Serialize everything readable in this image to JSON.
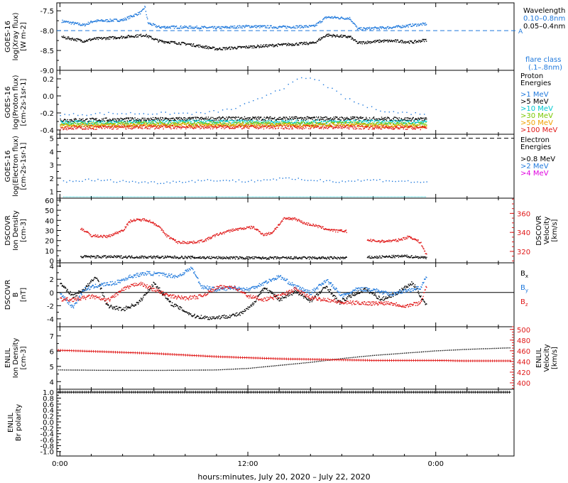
{
  "colors": {
    "black": "#000000",
    "blue": "#1e78dc",
    "red": "#e01818",
    "cyan": "#00c8d0",
    "green": "#78c800",
    "orange": "#f0a000",
    "magenta": "#e000e0"
  },
  "x_axis": {
    "xlabel": "hours:minutes, July 20, 2020 – July 22, 2020",
    "xlim_hours": [
      -0.2,
      29.0
    ],
    "ticks": [
      {
        "h": 0,
        "label": "0:00"
      },
      {
        "h": 12,
        "label": "12:00"
      },
      {
        "h": 24,
        "label": "0:00"
      }
    ]
  },
  "chart_data": [
    {
      "id": "xray",
      "type": "scatter",
      "ylabel": [
        "GOES-16",
        "log(Xray flux)",
        "[W m-2]"
      ],
      "ylim": [
        -9.0,
        -7.3
      ],
      "yticks": [
        -9.0,
        -8.5,
        -8.0,
        -7.5
      ],
      "ytick_labels": [
        "-9.0",
        "-8.5",
        "-8.0",
        "-7.5"
      ],
      "reference_line": {
        "y": -8.0,
        "label": "A"
      },
      "legend_title": "Wavelength",
      "series": [
        {
          "name": "0.10–0.8nm",
          "color": "blue",
          "x": [
            0.1,
            1.5,
            2.1,
            4.0,
            5.2,
            5.4,
            5.6,
            6.3,
            8.0,
            10.0,
            12.0,
            14.0,
            16.2,
            17.0,
            18.5,
            19.0,
            20.5,
            21.4,
            22.5,
            23.4
          ],
          "y": [
            -7.75,
            -7.85,
            -7.75,
            -7.72,
            -7.52,
            -7.38,
            -7.8,
            -7.9,
            -7.9,
            -7.92,
            -7.88,
            -7.9,
            -7.88,
            -7.65,
            -7.68,
            -7.95,
            -7.92,
            -7.9,
            -7.85,
            -7.82
          ]
        },
        {
          "name": "0.05–0.4nm",
          "color": "black",
          "x": [
            0.1,
            1.5,
            2.1,
            4.0,
            5.4,
            6.3,
            8.0,
            10.0,
            12.0,
            14.0,
            16.2,
            17.0,
            18.5,
            19.0,
            20.5,
            21.4,
            22.5,
            23.4
          ],
          "y": [
            -8.15,
            -8.25,
            -8.2,
            -8.15,
            -8.1,
            -8.25,
            -8.32,
            -8.45,
            -8.4,
            -8.35,
            -8.3,
            -8.1,
            -8.15,
            -8.3,
            -8.25,
            -8.25,
            -8.28,
            -8.22
          ]
        }
      ],
      "extra_legend": "flare class",
      "extra_legend_sub": "(.1–.8nm)"
    },
    {
      "id": "proton",
      "type": "scatter",
      "ylabel": [
        "GOES-16",
        "log(Proton flux)",
        "[cm-2s-1sr-1]"
      ],
      "ylim": [
        -0.45,
        0.3
      ],
      "yticks": [
        -0.4,
        -0.2,
        0.0,
        0.2
      ],
      "ytick_labels": [
        "-0.4",
        "-0.2",
        "0.0",
        "0.2"
      ],
      "legend_title": [
        "Proton",
        "Energies"
      ],
      "series": [
        {
          "name": ">1 MeV",
          "color": "blue",
          "x": [
            0,
            3,
            6,
            9,
            11,
            12.5,
            13.5,
            14.5,
            15.2,
            15.8,
            16.5,
            17.2,
            18.2,
            19.5,
            21,
            22.5,
            23.4
          ],
          "y": [
            -0.22,
            -0.2,
            -0.2,
            -0.2,
            -0.15,
            -0.05,
            0.05,
            0.12,
            0.2,
            0.22,
            0.18,
            0.1,
            -0.02,
            -0.12,
            -0.18,
            -0.2,
            -0.2
          ]
        },
        {
          "name": ">5 MeV",
          "color": "black",
          "x": [
            0,
            6,
            12,
            18,
            23.4
          ],
          "y": [
            -0.28,
            -0.27,
            -0.26,
            -0.26,
            -0.27
          ]
        },
        {
          "name": ">10 MeV",
          "color": "cyan",
          "x": [
            0,
            6,
            12,
            18,
            23.4
          ],
          "y": [
            -0.31,
            -0.3,
            -0.3,
            -0.3,
            -0.3
          ]
        },
        {
          "name": ">30 MeV",
          "color": "green",
          "x": [
            0,
            6,
            12,
            18,
            23.4
          ],
          "y": [
            -0.33,
            -0.32,
            -0.32,
            -0.32,
            -0.33
          ]
        },
        {
          "name": ">50 MeV",
          "color": "orange",
          "x": [
            0,
            6,
            12,
            18,
            23.4
          ],
          "y": [
            -0.35,
            -0.34,
            -0.34,
            -0.34,
            -0.35
          ]
        },
        {
          "name": ">100 MeV",
          "color": "red",
          "x": [
            0,
            6,
            12,
            18,
            23.4
          ],
          "y": [
            -0.37,
            -0.36,
            -0.36,
            -0.36,
            -0.37
          ]
        }
      ]
    },
    {
      "id": "electron",
      "type": "scatter",
      "ylabel": [
        "GOES-16",
        "log(Electron flux)",
        "[cm-2s-1sr-1]"
      ],
      "ylim": [
        0.5,
        5.3
      ],
      "yticks": [
        1,
        2,
        3,
        4,
        5
      ],
      "ytick_labels": [
        "1",
        "2",
        "3",
        "4",
        "5"
      ],
      "reference_line": {
        "y": 5.0
      },
      "legend_title": [
        "Electron",
        "Energies"
      ],
      "series": [
        {
          "name": ">0.8 MeV",
          "color": "black",
          "x": [],
          "y": []
        },
        {
          "name": ">2 MeV",
          "color": "blue",
          "x": [
            0.2,
            2,
            4,
            6,
            8,
            10,
            12,
            14,
            16,
            18,
            20,
            22,
            23.4
          ],
          "y": [
            1.8,
            1.9,
            1.8,
            1.7,
            1.8,
            1.9,
            1.8,
            2.0,
            1.9,
            1.8,
            1.9,
            1.8,
            1.7
          ]
        },
        {
          "name": ">4 MeV",
          "color": "magenta",
          "x": [],
          "y": []
        }
      ],
      "baseline": {
        "color": "cyan",
        "y": 0.6,
        "x": [
          0.2,
          23.4
        ]
      }
    },
    {
      "id": "dscovr_plasma",
      "type": "scatter",
      "ylabel": [
        "DSCOVR",
        "Ion Density",
        "[cm-3]"
      ],
      "ylim": [
        -2,
        62
      ],
      "yticks": [
        0,
        10,
        20,
        30,
        40,
        50,
        60
      ],
      "ytick_labels": [
        "0",
        "10",
        "20",
        "30",
        "40",
        "50",
        "60"
      ],
      "y2label": [
        "DSCOVR",
        "Velocity",
        "[km/s]"
      ],
      "y2lim": [
        308,
        376
      ],
      "y2ticks": [
        320,
        340,
        360
      ],
      "y2tick_labels": [
        "320",
        "340",
        "360"
      ],
      "series": [
        {
          "name": "density",
          "color": "black",
          "axis": "left",
          "x": [
            1.3,
            4,
            7,
            10,
            13,
            16,
            18.2,
            19.7,
            22,
            23.4
          ],
          "y": [
            4.5,
            4.3,
            4.0,
            3.5,
            3.2,
            3.3,
            3.2,
            3.8,
            5.0,
            3.5
          ]
        },
        {
          "name": "velocity",
          "color": "red",
          "axis": "right",
          "x": [
            1.3,
            2.0,
            3.0,
            3.6,
            4.0,
            4.5,
            5.5,
            6.2,
            6.8,
            7.5,
            8.5,
            9.2,
            10.0,
            11.0,
            11.8,
            12.3,
            13.0,
            13.5,
            14.3,
            15.0,
            15.6,
            16.2,
            17.0,
            17.6,
            18.2,
            19.7,
            20.5,
            21.5,
            22.3,
            23.0,
            23.4
          ],
          "y": [
            345,
            337,
            336,
            340,
            343,
            353,
            354,
            348,
            337,
            330,
            330,
            332,
            338,
            343,
            345,
            346,
            338,
            340,
            355,
            355,
            350,
            348,
            344,
            342,
            342,
            332,
            331,
            332,
            336,
            330,
            316
          ]
        }
      ]
    },
    {
      "id": "dscovr_mag",
      "type": "scatter",
      "ylabel": [
        "DSCOVR",
        "B",
        "[nT]"
      ],
      "ylim": [
        -5.2,
        4.5
      ],
      "yticks": [
        -4,
        -2,
        0,
        2,
        4
      ],
      "ytick_labels": [
        "-4",
        "-2",
        "0",
        "2",
        "4"
      ],
      "zero_line": true,
      "series": [
        {
          "name": "Bx",
          "color": "black",
          "x": [
            0,
            0.8,
            1.5,
            2.3,
            3.0,
            4.0,
            5.0,
            6.0,
            7.0,
            8.0,
            8.5,
            9.5,
            10.5,
            11.5,
            12.2,
            13.0,
            14.0,
            15.0,
            16.0,
            17.0,
            17.8,
            18.5,
            19.5,
            20.5,
            21.5,
            22.5,
            23.4
          ],
          "y": [
            1.5,
            -0.5,
            0.5,
            2.5,
            -2.0,
            -2.5,
            -1.5,
            1.5,
            -1.5,
            -2.8,
            -3.5,
            -3.8,
            -3.6,
            -3.2,
            -2.0,
            0.8,
            -1.0,
            0.2,
            -1.2,
            1.0,
            -1.5,
            -0.5,
            0.6,
            -1.0,
            0.0,
            1.5,
            -2.0
          ]
        },
        {
          "name": "By",
          "color": "blue",
          "x": [
            0,
            0.8,
            1.5,
            2.5,
            3.5,
            4.5,
            5.5,
            6.5,
            7.5,
            8.4,
            9.0,
            10.0,
            11.0,
            12.0,
            13.0,
            14.0,
            15.0,
            16.0,
            17.0,
            18.0,
            19.0,
            20.0,
            21.0,
            22.0,
            23.0,
            23.4
          ],
          "y": [
            0.0,
            -2.2,
            0.5,
            1.2,
            1.5,
            2.5,
            3.0,
            2.8,
            2.5,
            3.8,
            1.0,
            0.5,
            0.8,
            0.5,
            1.5,
            2.5,
            1.0,
            0.0,
            2.0,
            -0.5,
            0.6,
            0.5,
            -0.2,
            0.3,
            0.8,
            2.5
          ]
        },
        {
          "name": "Bz",
          "color": "red",
          "x": [
            0,
            1.0,
            2.0,
            3.0,
            4.0,
            5.0,
            6.0,
            7.0,
            8.0,
            9.0,
            10.0,
            11.0,
            12.0,
            13.0,
            14.0,
            15.0,
            16.0,
            17.0,
            18.0,
            19.0,
            20.0,
            21.0,
            22.0,
            23.0,
            23.4
          ],
          "y": [
            -1.0,
            -1.0,
            -0.5,
            -1.2,
            0.5,
            1.5,
            0.5,
            -0.5,
            -0.8,
            -0.5,
            0.8,
            1.0,
            -0.5,
            -1.0,
            -0.5,
            0.6,
            -0.8,
            -1.0,
            -1.5,
            -1.5,
            -1.6,
            -1.5,
            -2.0,
            -1.5,
            1.2
          ]
        }
      ]
    },
    {
      "id": "enlil_plasma",
      "type": "line",
      "ylabel": [
        "ENLIL",
        "Ion Density",
        "[cm-3]"
      ],
      "ylim": [
        3.5,
        7.6
      ],
      "yticks": [
        4,
        5,
        6,
        7
      ],
      "ytick_labels": [
        "4",
        "5",
        "6",
        "7"
      ],
      "y2label": [
        "ENLIL",
        "Velocity",
        "[km/s]"
      ],
      "y2lim": [
        388,
        505
      ],
      "y2ticks": [
        400,
        420,
        440,
        460,
        480,
        500
      ],
      "y2tick_labels": [
        "400",
        "420",
        "440",
        "460",
        "480",
        "500"
      ],
      "series": [
        {
          "name": "density",
          "color": "black",
          "axis": "left",
          "x": [
            -0.1,
            2,
            4,
            6,
            8,
            10,
            12,
            14,
            16,
            18,
            20,
            22,
            24,
            26,
            28.8
          ],
          "y": [
            4.8,
            4.78,
            4.77,
            4.77,
            4.78,
            4.8,
            4.9,
            5.1,
            5.3,
            5.55,
            5.75,
            5.9,
            6.05,
            6.15,
            6.25
          ]
        },
        {
          "name": "velocity",
          "color": "red",
          "axis": "right",
          "x": [
            -0.1,
            2,
            4,
            6,
            8,
            10,
            12,
            14,
            16,
            18,
            20,
            22,
            24,
            26,
            28.8
          ],
          "y": [
            461,
            459,
            457,
            455,
            452,
            449,
            447,
            445,
            444,
            443,
            442,
            442,
            442,
            441,
            441
          ]
        }
      ]
    },
    {
      "id": "enlil_polarity",
      "type": "line",
      "ylabel": [
        "ENLIL",
        "Br polarity"
      ],
      "ylim": [
        -1.15,
        1.1
      ],
      "yticks": [
        -1.0,
        -0.8,
        -0.6,
        -0.4,
        -0.2,
        0.0,
        0.2,
        0.4,
        0.6,
        0.8,
        1.0
      ],
      "ytick_labels": [
        "-1.0",
        "-0.8",
        "-0.6",
        "-0.4",
        "-0.2",
        "0.0",
        "0.2",
        "0.4",
        "0.6",
        "0.8",
        "1.0"
      ],
      "series": [
        {
          "name": "polarity",
          "color": "black",
          "x": [
            -0.1,
            28.8
          ],
          "y": [
            1.0,
            1.0
          ]
        }
      ]
    }
  ]
}
